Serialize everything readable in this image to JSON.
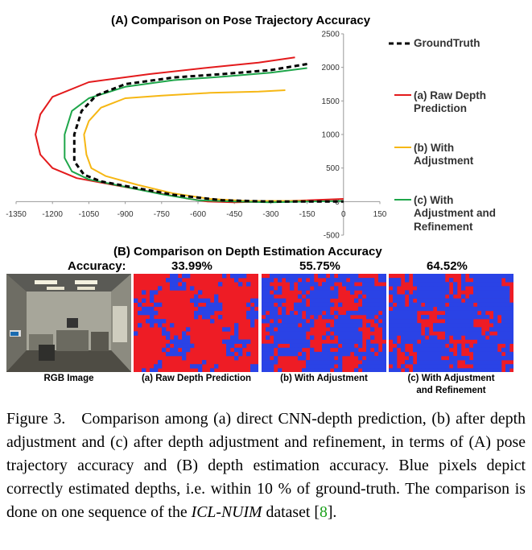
{
  "chart_data": {
    "type": "line",
    "title": "(A) Comparison on Pose Trajectory Accuracy",
    "x_ticks": [
      "-1350",
      "-1200",
      "-1050",
      "-900",
      "-750",
      "-600",
      "-450",
      "-300",
      "-150",
      "0",
      "150"
    ],
    "y_ticks": [
      "2500",
      "2000",
      "1500",
      "1000",
      "500",
      "0",
      "-500"
    ],
    "xlim": [
      -1350,
      150
    ],
    "ylim": [
      -500,
      2500
    ],
    "grid": false,
    "legend_position": "right",
    "series": [
      {
        "name": "GroundTruth",
        "color": "#000000",
        "style": "dashed",
        "points": [
          [
            -150,
            2050
          ],
          [
            -300,
            1960
          ],
          [
            -500,
            1900
          ],
          [
            -700,
            1850
          ],
          [
            -900,
            1750
          ],
          [
            -1020,
            1580
          ],
          [
            -1080,
            1350
          ],
          [
            -1110,
            1000
          ],
          [
            -1110,
            600
          ],
          [
            -1070,
            400
          ],
          [
            -1000,
            300
          ],
          [
            -850,
            200
          ],
          [
            -700,
            100
          ],
          [
            -500,
            20
          ],
          [
            -300,
            0
          ],
          [
            -150,
            0
          ],
          [
            0,
            0
          ]
        ]
      },
      {
        "name": "(a) Raw Depth Prediction",
        "color": "#e31a1c",
        "style": "solid",
        "points": [
          [
            -200,
            2150
          ],
          [
            -350,
            2070
          ],
          [
            -550,
            2000
          ],
          [
            -800,
            1900
          ],
          [
            -1050,
            1780
          ],
          [
            -1200,
            1560
          ],
          [
            -1250,
            1300
          ],
          [
            -1270,
            1000
          ],
          [
            -1250,
            700
          ],
          [
            -1200,
            500
          ],
          [
            -1100,
            350
          ],
          [
            -950,
            250
          ],
          [
            -800,
            150
          ],
          [
            -650,
            50
          ],
          [
            -560,
            0
          ],
          [
            -450,
            -10
          ],
          [
            -300,
            0
          ],
          [
            -150,
            20
          ],
          [
            0,
            40
          ]
        ]
      },
      {
        "name": "(b) With Adjustment",
        "color": "#f6b714",
        "style": "solid",
        "points": [
          [
            -240,
            1660
          ],
          [
            -350,
            1640
          ],
          [
            -550,
            1620
          ],
          [
            -750,
            1580
          ],
          [
            -900,
            1540
          ],
          [
            -1000,
            1400
          ],
          [
            -1050,
            1200
          ],
          [
            -1070,
            1000
          ],
          [
            -1060,
            700
          ],
          [
            -1040,
            500
          ],
          [
            -980,
            380
          ],
          [
            -850,
            250
          ],
          [
            -700,
            120
          ],
          [
            -550,
            40
          ],
          [
            -400,
            10
          ],
          [
            -250,
            10
          ],
          [
            -150,
            10
          ]
        ]
      },
      {
        "name": "(c) With Adjustment and Refinement",
        "color": "#1ea64a",
        "style": "solid",
        "points": [
          [
            -150,
            1990
          ],
          [
            -300,
            1920
          ],
          [
            -500,
            1860
          ],
          [
            -700,
            1810
          ],
          [
            -900,
            1710
          ],
          [
            -1050,
            1540
          ],
          [
            -1120,
            1350
          ],
          [
            -1150,
            1000
          ],
          [
            -1150,
            650
          ],
          [
            -1120,
            450
          ],
          [
            -1050,
            330
          ],
          [
            -900,
            220
          ],
          [
            -750,
            110
          ],
          [
            -600,
            20
          ],
          [
            -450,
            0
          ],
          [
            -300,
            -10
          ],
          [
            -150,
            0
          ],
          [
            0,
            10
          ]
        ]
      }
    ]
  },
  "legend_labels": {
    "groundtruth": "GroundTruth",
    "raw_line1": "(a) Raw Depth",
    "raw_line2": "Prediction",
    "adj_line1": "(b) With",
    "adj_line2": "Adjustment",
    "ref_line1": "(c) With",
    "ref_line2": "Adjustment and",
    "ref_line3": "Refinement"
  },
  "section_b": {
    "title": "(B) Comparison on Depth Estimation Accuracy",
    "accuracy_label": "Accuracy:",
    "accuracies": [
      "33.99%",
      "55.75%",
      "64.52%"
    ],
    "captions": {
      "rgb": "RGB Image",
      "raw": "(a) Raw Depth Prediction",
      "adj": "(b) With Adjustment",
      "ref_line1": "(c) With Adjustment",
      "ref_line2": "and Refinement"
    },
    "correct_fraction": [
      0.3399,
      0.5575,
      0.6452
    ],
    "colors": {
      "correct": "#2a43e6",
      "incorrect": "#ee1c25"
    }
  },
  "figure_caption": {
    "label": "Figure 3.",
    "text_before_dataset": "Comparison among (a) direct CNN-depth prediction, (b) after depth adjustment and (c) after depth adjustment and refinement, in terms of (A) pose trajectory accuracy and (B) depth estimation accuracy. Blue pixels depict correctly estimated depths, i.e. within 10 % of ground-truth. The comparison is done on one sequence of the ",
    "dataset": "ICL-NUIM",
    "text_after_dataset": " dataset [",
    "citation": "8",
    "closing": "]."
  }
}
